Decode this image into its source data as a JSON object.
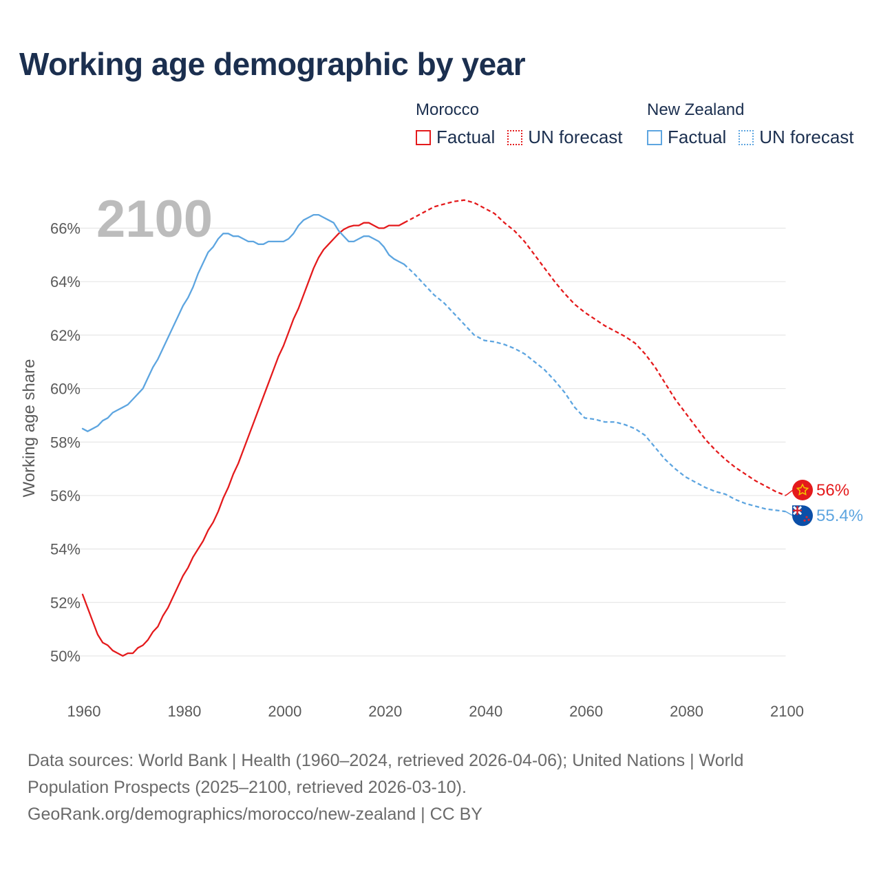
{
  "title": "Working age demographic by year",
  "legend": {
    "morocco": {
      "name": "Morocco",
      "factual": "Factual",
      "forecast": "UN forecast",
      "color": "#e41a1c"
    },
    "new_zealand": {
      "name": "New Zealand",
      "factual": "Factual",
      "forecast": "UN forecast",
      "color": "#5da5e0"
    }
  },
  "end_labels": {
    "morocco": "56%",
    "new_zealand": "55.4%"
  },
  "icons": {
    "morocco": "morocco-flag-icon",
    "new_zealand": "new-zealand-flag-icon"
  },
  "sources": {
    "line1": "Data sources: World Bank | Health (1960–2024, retrieved 2026-04-06); United Nations | World",
    "line2": "Population Prospects (2025–2100, retrieved 2026-03-10).",
    "line3": "GeoRank.org/demographics/morocco/new-zealand | CC BY"
  },
  "chart_data": {
    "type": "line",
    "title": "Working age demographic by year",
    "watermark_year": "2100",
    "xlabel": "",
    "ylabel": "Working age share",
    "xlim": [
      1960,
      2103
    ],
    "ylim": [
      49,
      67.8
    ],
    "x_ticks": [
      1960,
      1980,
      2000,
      2020,
      2040,
      2060,
      2080,
      2100
    ],
    "y_ticks": [
      50,
      52,
      54,
      56,
      58,
      60,
      62,
      64,
      66
    ],
    "y_tick_suffix": "%",
    "grid": true,
    "legend_position": "top-right",
    "series": [
      {
        "name": "Morocco Factual",
        "country": "Morocco",
        "kind": "factual",
        "color": "#e41a1c",
        "x": [
          1960,
          1962,
          1963,
          1964,
          1965,
          1966,
          1967,
          1968,
          1969,
          1970,
          1971,
          1972,
          1973,
          1974,
          1975,
          1976,
          1977,
          1978,
          1979,
          1980,
          1981,
          1982,
          1983,
          1984,
          1985,
          1986,
          1987,
          1988,
          1989,
          1990,
          1991,
          1992,
          1993,
          1994,
          1995,
          1996,
          1997,
          1998,
          1999,
          2000,
          2001,
          2002,
          2003,
          2004,
          2005,
          2006,
          2007,
          2008,
          2009,
          2010,
          2011,
          2012,
          2013,
          2014,
          2015,
          2016,
          2017,
          2018,
          2019,
          2020,
          2021,
          2022,
          2023,
          2024
        ],
        "y": [
          52.3,
          51.3,
          50.8,
          50.5,
          50.4,
          50.2,
          50.1,
          50.0,
          50.1,
          50.1,
          50.3,
          50.4,
          50.6,
          50.9,
          51.1,
          51.5,
          51.8,
          52.2,
          52.6,
          53.0,
          53.3,
          53.7,
          54.0,
          54.3,
          54.7,
          55.0,
          55.4,
          55.9,
          56.3,
          56.8,
          57.2,
          57.7,
          58.2,
          58.7,
          59.2,
          59.7,
          60.2,
          60.7,
          61.2,
          61.6,
          62.1,
          62.6,
          63.0,
          63.5,
          64.0,
          64.5,
          64.9,
          65.2,
          65.4,
          65.6,
          65.8,
          65.95,
          66.05,
          66.1,
          66.1,
          66.2,
          66.2,
          66.1,
          66.0,
          66.0,
          66.1,
          66.1,
          66.1,
          66.2
        ]
      },
      {
        "name": "Morocco UN forecast",
        "country": "Morocco",
        "kind": "forecast",
        "color": "#e41a1c",
        "x": [
          2024,
          2026,
          2028,
          2030,
          2032,
          2034,
          2036,
          2038,
          2040,
          2042,
          2044,
          2046,
          2048,
          2050,
          2052,
          2054,
          2056,
          2058,
          2060,
          2062,
          2064,
          2066,
          2068,
          2070,
          2072,
          2074,
          2076,
          2078,
          2080,
          2082,
          2084,
          2086,
          2088,
          2090,
          2092,
          2094,
          2096,
          2098,
          2100
        ],
        "y": [
          66.2,
          66.4,
          66.6,
          66.8,
          66.9,
          67.0,
          67.05,
          66.95,
          66.75,
          66.55,
          66.2,
          65.9,
          65.5,
          65.0,
          64.5,
          64.0,
          63.55,
          63.15,
          62.85,
          62.6,
          62.35,
          62.15,
          61.95,
          61.7,
          61.3,
          60.8,
          60.2,
          59.6,
          59.1,
          58.6,
          58.1,
          57.7,
          57.35,
          57.05,
          56.8,
          56.55,
          56.35,
          56.15,
          56.0
        ]
      },
      {
        "name": "New Zealand Factual",
        "country": "New Zealand",
        "kind": "factual",
        "color": "#5da5e0",
        "x": [
          1960,
          1961,
          1962,
          1963,
          1964,
          1965,
          1966,
          1967,
          1968,
          1969,
          1970,
          1971,
          1972,
          1973,
          1974,
          1975,
          1976,
          1977,
          1978,
          1979,
          1980,
          1981,
          1982,
          1983,
          1984,
          1985,
          1986,
          1987,
          1988,
          1989,
          1990,
          1991,
          1992,
          1993,
          1994,
          1995,
          1996,
          1997,
          1998,
          1999,
          2000,
          2001,
          2002,
          2003,
          2004,
          2005,
          2006,
          2007,
          2008,
          2009,
          2010,
          2011,
          2012,
          2013,
          2014,
          2015,
          2016,
          2017,
          2018,
          2019,
          2020,
          2021,
          2022,
          2023,
          2024
        ],
        "y": [
          58.5,
          58.4,
          58.5,
          58.6,
          58.8,
          58.9,
          59.1,
          59.2,
          59.3,
          59.4,
          59.6,
          59.8,
          60.0,
          60.4,
          60.8,
          61.1,
          61.5,
          61.9,
          62.3,
          62.7,
          63.1,
          63.4,
          63.8,
          64.3,
          64.7,
          65.1,
          65.3,
          65.6,
          65.8,
          65.8,
          65.7,
          65.7,
          65.6,
          65.5,
          65.5,
          65.4,
          65.4,
          65.5,
          65.5,
          65.5,
          65.5,
          65.6,
          65.8,
          66.1,
          66.3,
          66.4,
          66.5,
          66.5,
          66.4,
          66.3,
          66.2,
          65.9,
          65.7,
          65.5,
          65.5,
          65.6,
          65.7,
          65.7,
          65.6,
          65.5,
          65.3,
          65.0,
          64.85,
          64.75,
          64.65
        ]
      },
      {
        "name": "New Zealand UN forecast",
        "country": "New Zealand",
        "kind": "forecast",
        "color": "#5da5e0",
        "x": [
          2024,
          2026,
          2028,
          2030,
          2032,
          2034,
          2036,
          2038,
          2040,
          2042,
          2044,
          2046,
          2048,
          2050,
          2052,
          2054,
          2056,
          2058,
          2060,
          2062,
          2064,
          2066,
          2068,
          2070,
          2072,
          2074,
          2076,
          2078,
          2080,
          2082,
          2084,
          2086,
          2088,
          2090,
          2092,
          2094,
          2096,
          2098,
          2100
        ],
        "y": [
          64.65,
          64.3,
          63.9,
          63.5,
          63.2,
          62.8,
          62.4,
          62.0,
          61.8,
          61.75,
          61.65,
          61.5,
          61.3,
          61.0,
          60.7,
          60.3,
          59.85,
          59.3,
          58.9,
          58.85,
          58.75,
          58.75,
          58.65,
          58.5,
          58.25,
          57.8,
          57.35,
          57.0,
          56.7,
          56.5,
          56.3,
          56.15,
          56.05,
          55.85,
          55.7,
          55.6,
          55.5,
          55.45,
          55.4
        ]
      }
    ]
  }
}
